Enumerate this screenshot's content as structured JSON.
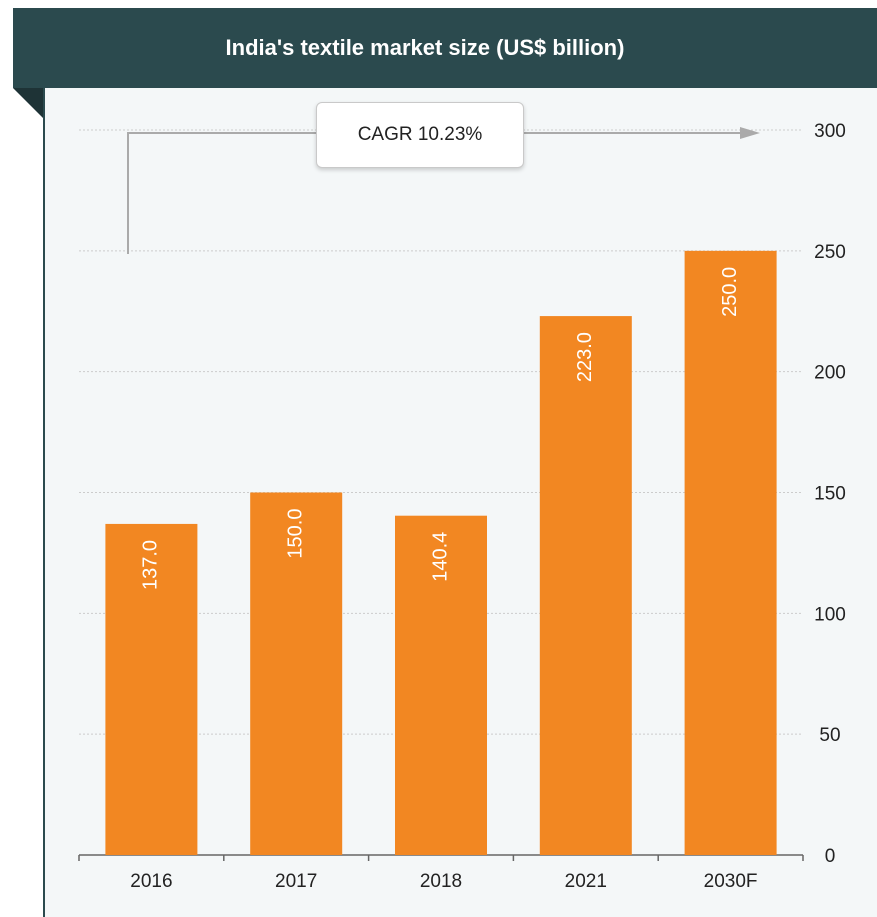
{
  "chart_data": {
    "type": "bar",
    "title": "India's textile market size (US$ billion)",
    "categories": [
      "2016",
      "2017",
      "2018",
      "2021",
      "2030F"
    ],
    "values": [
      137.0,
      150.0,
      140.4,
      223.0,
      250.0
    ],
    "value_labels": [
      "137.0",
      "150.0",
      "140.4",
      "223.0",
      "250.0"
    ],
    "yticks": [
      "0",
      "50",
      "100",
      "150",
      "200",
      "250",
      "300"
    ],
    "ylim": [
      0,
      300
    ],
    "y_axis_side": "right",
    "grid": true,
    "annotation": "CAGR 10.23%",
    "colors": {
      "bar": "#f28722",
      "banner": "#2b4a4e",
      "grid": "#cccccc",
      "axis": "#666666",
      "arrow": "#aaaaaa"
    }
  }
}
